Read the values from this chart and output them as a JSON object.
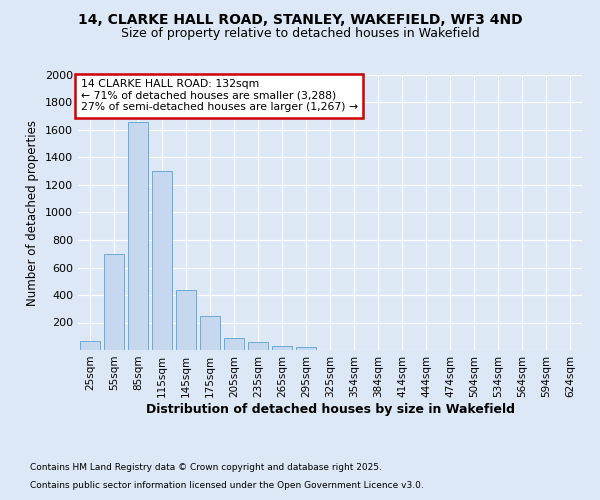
{
  "title_line1": "14, CLARKE HALL ROAD, STANLEY, WAKEFIELD, WF3 4ND",
  "title_line2": "Size of property relative to detached houses in Wakefield",
  "xlabel": "Distribution of detached houses by size in Wakefield",
  "ylabel": "Number of detached properties",
  "categories": [
    "25sqm",
    "55sqm",
    "85sqm",
    "115sqm",
    "145sqm",
    "175sqm",
    "205sqm",
    "235sqm",
    "265sqm",
    "295sqm",
    "325sqm",
    "354sqm",
    "384sqm",
    "414sqm",
    "444sqm",
    "474sqm",
    "504sqm",
    "534sqm",
    "564sqm",
    "594sqm",
    "624sqm"
  ],
  "values": [
    65,
    700,
    1660,
    1305,
    440,
    250,
    88,
    55,
    30,
    25,
    0,
    0,
    0,
    0,
    0,
    0,
    0,
    0,
    0,
    0,
    0
  ],
  "bar_color": "#c5d8f0",
  "bar_edge_color": "#6aabd6",
  "annotation_line1": "14 CLARKE HALL ROAD: 132sqm",
  "annotation_line2": "← 71% of detached houses are smaller (3,288)",
  "annotation_line3": "27% of semi-detached houses are larger (1,267) →",
  "annotation_box_facecolor": "#ffffff",
  "annotation_box_edgecolor": "#cc0000",
  "ylim": [
    0,
    2000
  ],
  "yticks": [
    0,
    200,
    400,
    600,
    800,
    1000,
    1200,
    1400,
    1600,
    1800,
    2000
  ],
  "background_color": "#dce8f5",
  "plot_bg_color": "#dce8f5",
  "grid_color": "#ffffff",
  "footnote_line1": "Contains HM Land Registry data © Crown copyright and database right 2025.",
  "footnote_line2": "Contains public sector information licensed under the Open Government Licence v3.0."
}
